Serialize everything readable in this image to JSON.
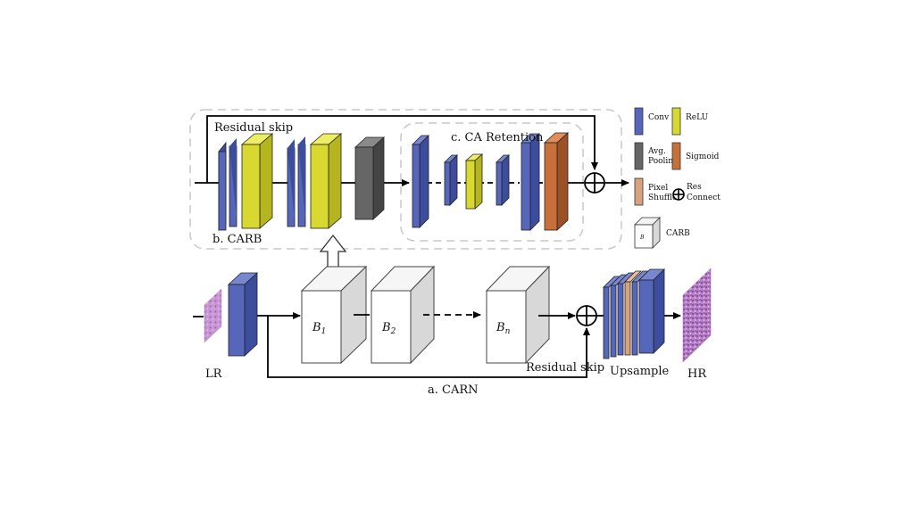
{
  "labels": {
    "residual_skip_top": "Residual skip",
    "carb": "b. CARB",
    "ca_retention": "c. CA Retention",
    "lr": "LR",
    "hr": "HR",
    "upsample": "Upsample",
    "residual_skip_bottom": "Residual skip",
    "carn": "a. CARN",
    "block_b1": "B",
    "block_b1_sub": "1",
    "block_b2": "B",
    "block_b2_sub": "2",
    "block_bn": "B",
    "block_bn_sub": "n"
  },
  "legend": {
    "conv": "Conv",
    "relu": "ReLU",
    "avg_pool_line1": "Avg.",
    "avg_pool_line2": "Pooling",
    "sigmoid": "Sigmoid",
    "pixel_shuffle_line1": "Pixel",
    "pixel_shuffle_line2": "Shuffle",
    "res_connect_line1": "Res",
    "res_connect_line2": "Connect",
    "carb": "CARB",
    "carb_icon_letter": "B"
  },
  "colors": {
    "conv": "#5566bb",
    "relu": "#d8d830",
    "avg_pool": "#666666",
    "sigmoid": "#c8703a",
    "pixel_shuffle": "#d9a27e",
    "block": "#ffffff",
    "block_side": "#d8d8d8",
    "tissue": "#c590d0"
  }
}
